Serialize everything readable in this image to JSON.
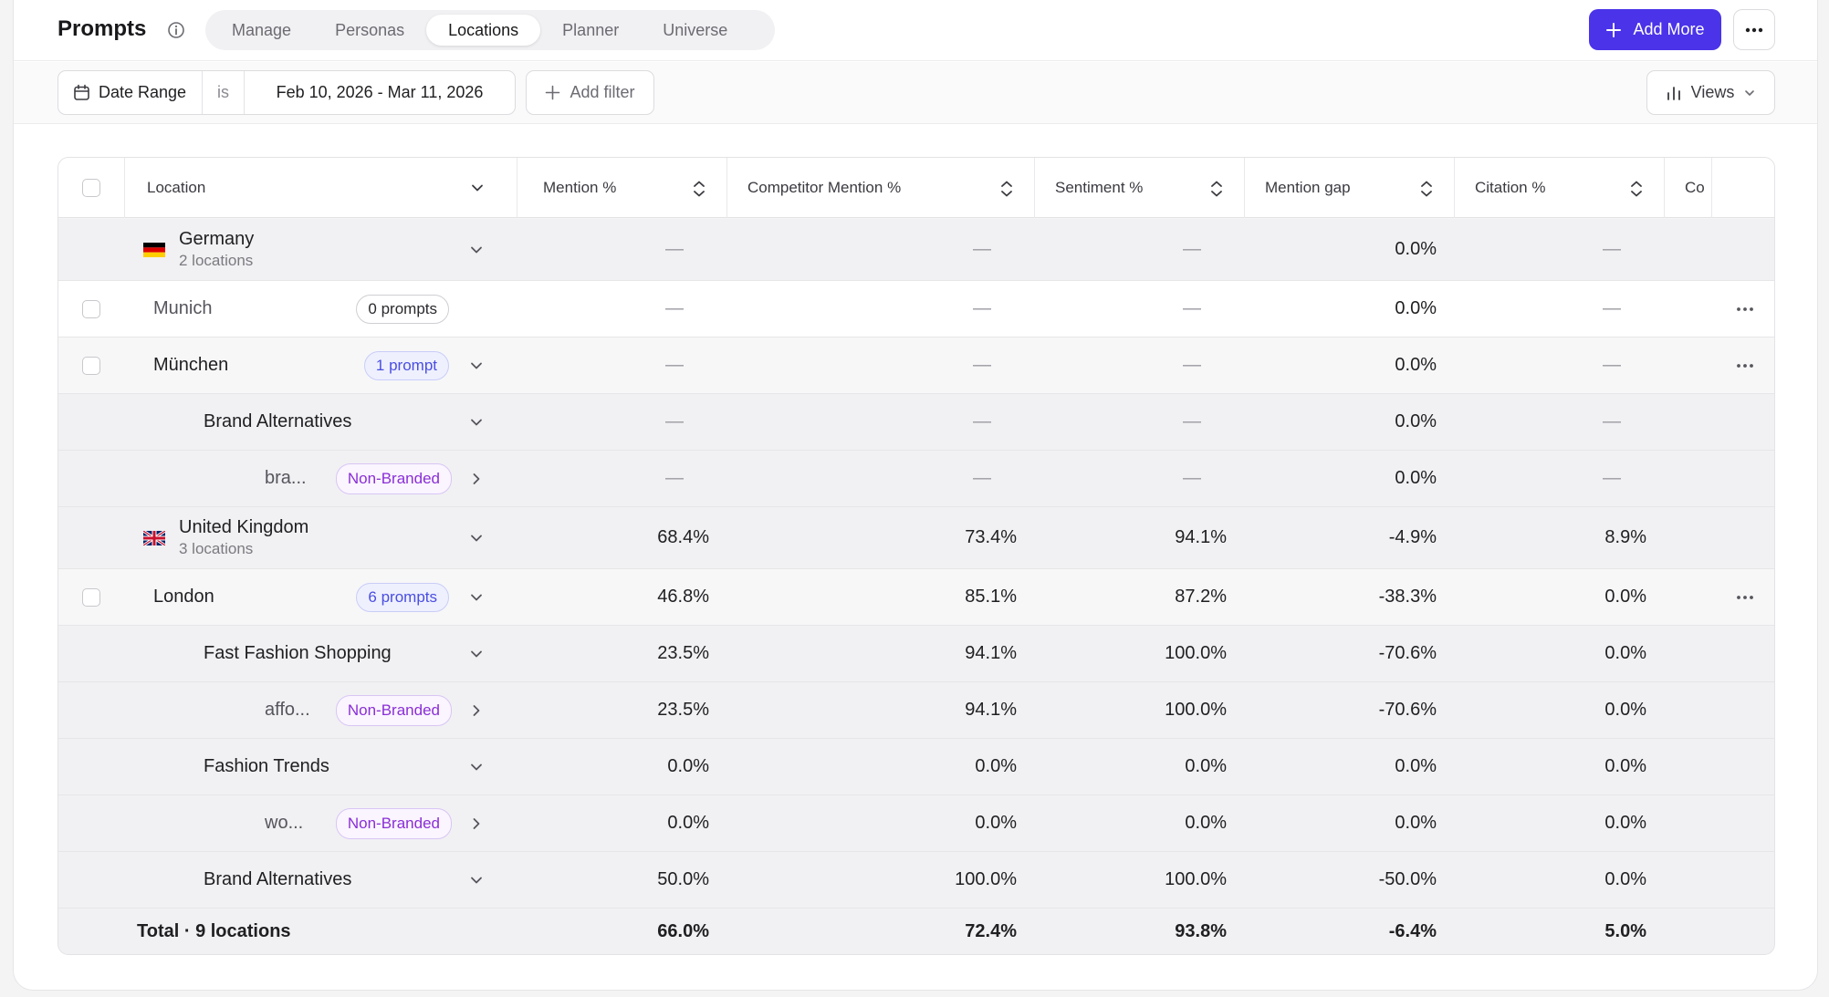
{
  "header": {
    "title": "Prompts",
    "tabs": [
      {
        "label": "Manage",
        "active": false
      },
      {
        "label": "Personas",
        "active": false
      },
      {
        "label": "Locations",
        "active": true
      },
      {
        "label": "Planner",
        "active": false
      },
      {
        "label": "Universe",
        "active": false
      }
    ],
    "add_more_label": "Add More"
  },
  "filters": {
    "date_range_label": "Date Range",
    "operator": "is",
    "date_range_value": "Feb 10, 2026 - Mar 11, 2026",
    "add_filter_label": "Add filter",
    "views_label": "Views"
  },
  "table": {
    "columns": {
      "location": "Location",
      "mention": "Mention %",
      "competitor": "Competitor Mention %",
      "sentiment": "Sentiment %",
      "gap": "Mention gap",
      "citation": "Citation %",
      "cut": "Co"
    },
    "rows": [
      {
        "type": "country",
        "name": "Germany",
        "sub": "2 locations",
        "flag": "de",
        "values": [
          "—",
          "—",
          "—",
          "0.0%",
          "—"
        ]
      },
      {
        "type": "location",
        "name": "Munich",
        "pill": "0 prompts",
        "pill_style": "neutral",
        "muted": true,
        "values": [
          "—",
          "—",
          "—",
          "0.0%",
          "—"
        ]
      },
      {
        "type": "location",
        "name": "München",
        "pill": "1 prompt",
        "pill_style": "blue",
        "values": [
          "—",
          "—",
          "—",
          "0.0%",
          "—"
        ]
      },
      {
        "type": "group",
        "name": "Brand Alternatives",
        "values": [
          "—",
          "—",
          "—",
          "0.0%",
          "—"
        ]
      },
      {
        "type": "prompt",
        "name": "bra...",
        "pill": "Non-Branded",
        "values": [
          "—",
          "—",
          "—",
          "0.0%",
          "—"
        ]
      },
      {
        "type": "country",
        "name": "United Kingdom",
        "sub": "3 locations",
        "flag": "uk",
        "values": [
          "68.4%",
          "73.4%",
          "94.1%",
          "-4.9%",
          "8.9%"
        ]
      },
      {
        "type": "location",
        "name": "London",
        "pill": "6 prompts",
        "pill_style": "blue",
        "values": [
          "46.8%",
          "85.1%",
          "87.2%",
          "-38.3%",
          "0.0%"
        ]
      },
      {
        "type": "group",
        "name": "Fast Fashion Shopping",
        "values": [
          "23.5%",
          "94.1%",
          "100.0%",
          "-70.6%",
          "0.0%"
        ]
      },
      {
        "type": "prompt",
        "name": "affo...",
        "pill": "Non-Branded",
        "values": [
          "23.5%",
          "94.1%",
          "100.0%",
          "-70.6%",
          "0.0%"
        ]
      },
      {
        "type": "group",
        "name": "Fashion Trends",
        "values": [
          "0.0%",
          "0.0%",
          "0.0%",
          "0.0%",
          "0.0%"
        ]
      },
      {
        "type": "prompt",
        "name": "wo...",
        "pill": "Non-Branded",
        "values": [
          "0.0%",
          "0.0%",
          "0.0%",
          "0.0%",
          "0.0%"
        ]
      },
      {
        "type": "group",
        "name": "Brand Alternatives",
        "values": [
          "50.0%",
          "100.0%",
          "100.0%",
          "-50.0%",
          "0.0%"
        ]
      }
    ],
    "total": {
      "label": "Total · 9 locations",
      "values": [
        "66.0%",
        "72.4%",
        "93.8%",
        "-6.4%",
        "5.0%"
      ]
    }
  }
}
